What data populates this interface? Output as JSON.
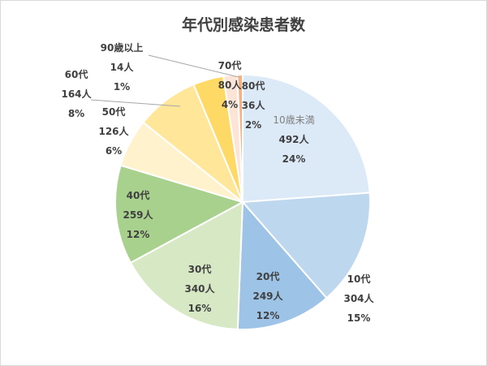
{
  "chart_data": {
    "type": "pie",
    "title": "年代別感染患者数",
    "categories": [
      "10歳未満",
      "10代",
      "20代",
      "30代",
      "40代",
      "50代",
      "60代",
      "70代",
      "80代",
      "90歳以上"
    ],
    "values": [
      492,
      304,
      249,
      340,
      259,
      126,
      164,
      80,
      36,
      14
    ],
    "labels": [
      {
        "name": "10歳未満",
        "value": "492人",
        "pct": "24%"
      },
      {
        "name": "10代",
        "value": "304人",
        "pct": "15%"
      },
      {
        "name": "20代",
        "value": "249人",
        "pct": "12%"
      },
      {
        "name": "30代",
        "value": "340人",
        "pct": "16%"
      },
      {
        "name": "40代",
        "value": "259人",
        "pct": "12%"
      },
      {
        "name": "50代",
        "value": "126人",
        "pct": "6%"
      },
      {
        "name": "60代",
        "value": "164人",
        "pct": "8%"
      },
      {
        "name": "70代",
        "value": "80人",
        "pct": "4%"
      },
      {
        "name": "80代",
        "value": "36人",
        "pct": "2%"
      },
      {
        "name": "90歳以上",
        "value": "14人",
        "pct": "1%"
      }
    ],
    "colors": [
      "#dce9f7",
      "#bdd7ee",
      "#9dc3e6",
      "#d6e8c4",
      "#a9d18e",
      "#fff2cc",
      "#ffe699",
      "#ffd966",
      "#fce4d6",
      "#f4b183"
    ],
    "legend": "none",
    "start_angle_deg": 0,
    "direction": "clockwise"
  }
}
